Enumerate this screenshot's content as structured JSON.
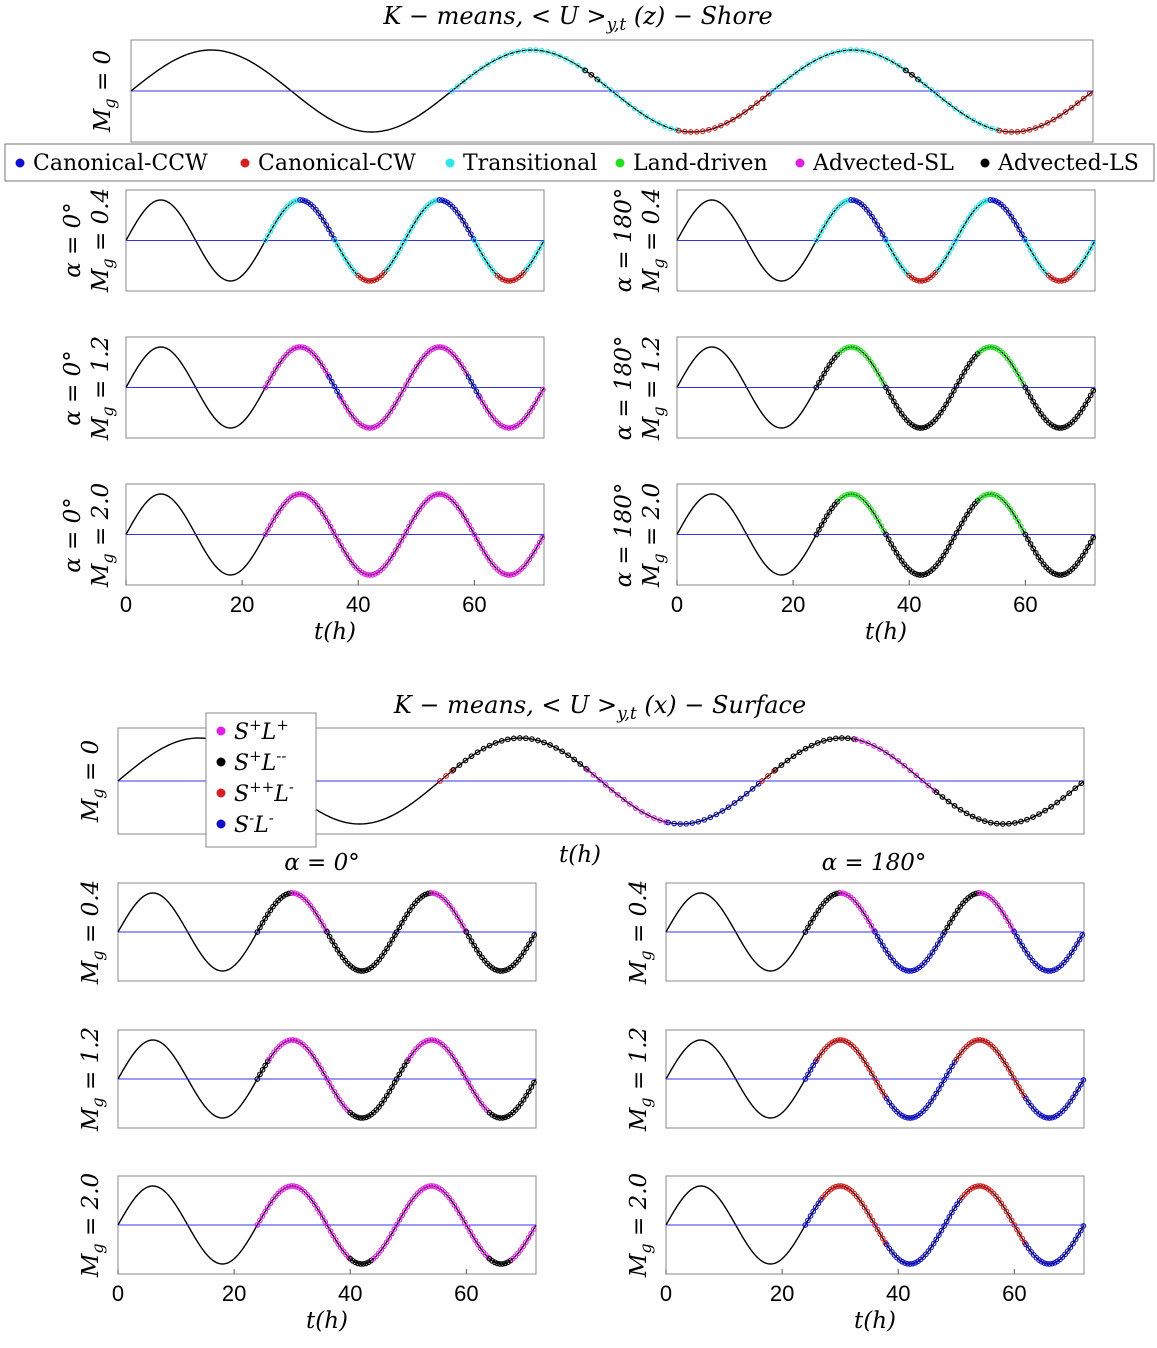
{
  "colors": {
    "Canonical-CCW": "#1111cc",
    "Canonical-CW": "#d42020",
    "Transitional": "#2ee6e6",
    "Land-driven": "#22dd22",
    "Advected-SL": "#e020e0",
    "Advected-LS": "#000000",
    "S+L+": "#e020e0",
    "S+L--": "#000000",
    "S++L-": "#d42020",
    "S-L-": "#1111cc",
    "curve": "#000000",
    "baseline": "#3333ee",
    "axes": "#888888"
  },
  "chart_data": [
    {
      "type": "line",
      "title": "K − means, < U >y,t (z) − Shore",
      "legend": {
        "placement": "top-center-horizontal",
        "entries": [
          "Canonical-CCW",
          "Canonical-CW",
          "Transitional",
          "Land-driven",
          "Advected-SL",
          "Advected-LS"
        ]
      },
      "xlabel": "t(h)",
      "xlim": [
        0,
        72
      ],
      "xticks": [
        0,
        20,
        40,
        60
      ],
      "series_function": "sin(2*pi*(t-24)/24)",
      "panels": [
        {
          "id": "shore-mg0",
          "ylabel": "Mg = 0",
          "xlim": [
            0,
            72
          ],
          "segments": [
            [
              24,
              34,
              "Transitional"
            ],
            [
              34,
              35,
              "Advected-LS"
            ],
            [
              35,
              41,
              "Transitional"
            ],
            [
              41,
              48,
              "Canonical-CW"
            ],
            [
              48,
              58,
              "Transitional"
            ],
            [
              58,
              59,
              "Advected-LS"
            ],
            [
              59,
              65,
              "Transitional"
            ],
            [
              65,
              72,
              "Canonical-CW"
            ]
          ]
        },
        {
          "id": "shore-a0-mg04",
          "ylabel": "α = 0° Mg = 0.4",
          "segments": [
            [
              24,
              30,
              "Transitional"
            ],
            [
              30,
              36,
              "Canonical-CCW"
            ],
            [
              36,
              40,
              "Transitional"
            ],
            [
              40,
              45,
              "Canonical-CW"
            ],
            [
              45,
              48,
              "Transitional"
            ],
            [
              48,
              54,
              "Transitional"
            ],
            [
              54,
              60,
              "Canonical-CCW"
            ],
            [
              60,
              64,
              "Transitional"
            ],
            [
              64,
              69,
              "Canonical-CW"
            ],
            [
              69,
              72,
              "Transitional"
            ]
          ]
        },
        {
          "id": "shore-a180-mg04",
          "ylabel": "α = 180° Mg = 0.4",
          "segments": [
            [
              24,
              30,
              "Transitional"
            ],
            [
              30,
              36,
              "Canonical-CCW"
            ],
            [
              36,
              40,
              "Transitional"
            ],
            [
              40,
              45,
              "Canonical-CW"
            ],
            [
              45,
              48,
              "Transitional"
            ],
            [
              48,
              54,
              "Transitional"
            ],
            [
              54,
              60,
              "Canonical-CCW"
            ],
            [
              60,
              64,
              "Transitional"
            ],
            [
              64,
              69,
              "Canonical-CW"
            ],
            [
              69,
              72,
              "Transitional"
            ]
          ]
        },
        {
          "id": "shore-a0-mg12",
          "ylabel": "α = 0° Mg = 1.2",
          "segments": [
            [
              24,
              35,
              "Advected-SL"
            ],
            [
              35,
              37,
              "Canonical-CCW"
            ],
            [
              37,
              59,
              "Advected-SL"
            ],
            [
              59,
              61,
              "Canonical-CCW"
            ],
            [
              61,
              72,
              "Advected-SL"
            ]
          ]
        },
        {
          "id": "shore-a180-mg12",
          "ylabel": "α = 180° Mg = 1.2",
          "segments": [
            [
              24,
              28,
              "Advected-LS"
            ],
            [
              28,
              36,
              "Land-driven"
            ],
            [
              36,
              52,
              "Advected-LS"
            ],
            [
              52,
              60,
              "Land-driven"
            ],
            [
              60,
              72,
              "Advected-LS"
            ]
          ]
        },
        {
          "id": "shore-a0-mg20",
          "ylabel": "α = 0° Mg = 2.0",
          "segments": [
            [
              24,
              72,
              "Advected-SL"
            ]
          ]
        },
        {
          "id": "shore-a180-mg20",
          "ylabel": "α = 180° Mg = 2.0",
          "segments": [
            [
              24,
              28,
              "Advected-LS"
            ],
            [
              28,
              36,
              "Land-driven"
            ],
            [
              36,
              52,
              "Advected-LS"
            ],
            [
              52,
              60,
              "Land-driven"
            ],
            [
              60,
              72,
              "Advected-LS"
            ]
          ]
        }
      ]
    },
    {
      "type": "line",
      "title": "K − means, < U >y,t (x) − Surface",
      "legend": {
        "placement": "top-left",
        "entries": [
          "S+L+",
          "S+L--",
          "S++L-",
          "S-L-"
        ]
      },
      "column_titles": [
        "α = 0°",
        "α = 180°"
      ],
      "xlabel": "t(h)",
      "xlim": [
        0,
        72
      ],
      "xticks": [
        0,
        20,
        40,
        60
      ],
      "series_function": "sin(2*pi*(t-24)/24)",
      "panels": [
        {
          "id": "surf-mg0",
          "ylabel": "Mg = 0",
          "xlim": [
            0,
            72
          ],
          "segments": [
            [
              24,
              25,
              "S++L-"
            ],
            [
              25,
              35,
              "S+L--"
            ],
            [
              35,
              41,
              "S+L+"
            ],
            [
              41,
              48,
              "S-L-"
            ],
            [
              48,
              49,
              "S++L-"
            ],
            [
              49,
              55,
              "S+L--"
            ],
            [
              55,
              61,
              "S+L+"
            ],
            [
              61,
              72,
              "S+L--"
            ]
          ]
        },
        {
          "id": "surf-a0-mg04",
          "ylabel": "Mg = 0.4",
          "segments": [
            [
              24,
              30,
              "S+L--"
            ],
            [
              30,
              36,
              "S+L+"
            ],
            [
              36,
              48,
              "S+L--"
            ],
            [
              48,
              54,
              "S+L--"
            ],
            [
              54,
              60,
              "S+L+"
            ],
            [
              60,
              72,
              "S+L--"
            ]
          ]
        },
        {
          "id": "surf-a180-mg04",
          "ylabel": "Mg = 0.4",
          "segments": [
            [
              24,
              30,
              "S+L--"
            ],
            [
              30,
              36,
              "S+L+"
            ],
            [
              36,
              48,
              "S-L-"
            ],
            [
              48,
              54,
              "S+L--"
            ],
            [
              54,
              60,
              "S+L+"
            ],
            [
              60,
              72,
              "S-L-"
            ]
          ]
        },
        {
          "id": "surf-a0-mg12",
          "ylabel": "Mg = 1.2",
          "segments": [
            [
              24,
              26,
              "S+L--"
            ],
            [
              26,
              40,
              "S+L+"
            ],
            [
              40,
              48,
              "S+L--"
            ],
            [
              48,
              50,
              "S+L--"
            ],
            [
              50,
              64,
              "S+L+"
            ],
            [
              64,
              72,
              "S+L--"
            ]
          ]
        },
        {
          "id": "surf-a180-mg12",
          "ylabel": "Mg = 1.2",
          "segments": [
            [
              24,
              26,
              "S-L-"
            ],
            [
              26,
              38,
              "S++L-"
            ],
            [
              38,
              50,
              "S-L-"
            ],
            [
              50,
              62,
              "S++L-"
            ],
            [
              62,
              72,
              "S-L-"
            ]
          ]
        },
        {
          "id": "surf-a0-mg20",
          "ylabel": "Mg = 2.0",
          "segments": [
            [
              24,
              40,
              "S+L+"
            ],
            [
              40,
              44,
              "S+L--"
            ],
            [
              44,
              64,
              "S+L+"
            ],
            [
              64,
              68,
              "S+L--"
            ],
            [
              68,
              72,
              "S+L+"
            ]
          ]
        },
        {
          "id": "surf-a180-mg20",
          "ylabel": "Mg = 2.0",
          "segments": [
            [
              24,
              27,
              "S-L-"
            ],
            [
              27,
              38,
              "S++L-"
            ],
            [
              38,
              51,
              "S-L-"
            ],
            [
              51,
              62,
              "S++L-"
            ],
            [
              62,
              72,
              "S-L-"
            ]
          ]
        }
      ]
    }
  ]
}
